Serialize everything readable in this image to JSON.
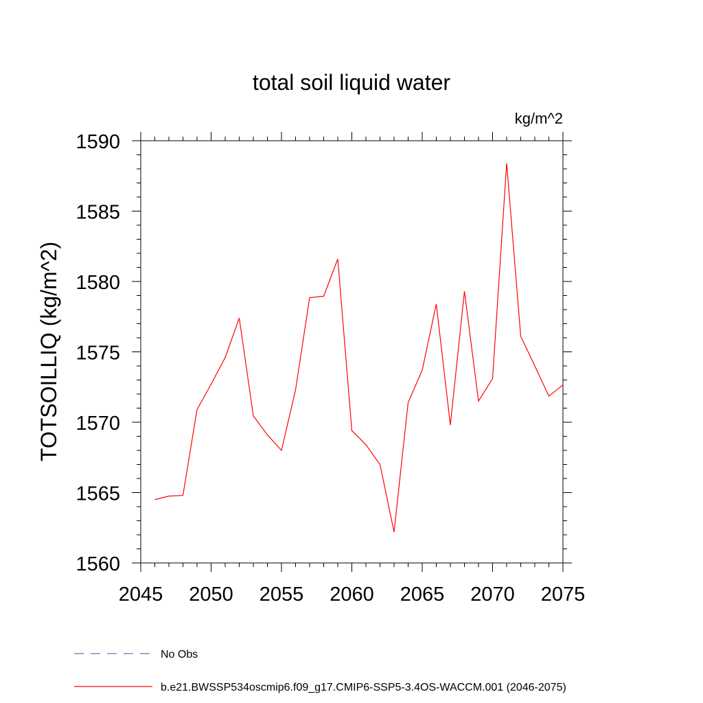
{
  "chart_data": {
    "type": "line",
    "title": "total soil liquid water",
    "units_label": "kg/m^2",
    "xlabel": "",
    "ylabel": "TOTSOILLIQ  (kg/m^2)",
    "xlim": [
      2045,
      2075
    ],
    "ylim": [
      1560,
      1590
    ],
    "xticks": [
      2045,
      2050,
      2055,
      2060,
      2065,
      2070,
      2075
    ],
    "yticks": [
      1560,
      1565,
      1570,
      1575,
      1580,
      1585,
      1590
    ],
    "x_minor_step": 1,
    "y_minor_step": 1,
    "grid": false,
    "legend_position": "bottom-left",
    "series": [
      {
        "name": "No Obs",
        "color": "#7b6fb0",
        "style": "dashed",
        "x": [],
        "values": []
      },
      {
        "name": "b.e21.BWSSP534oscmip6.f09_g17.CMIP6-SSP5-3.4OS-WACCM.001 (2046-2075)",
        "color": "#ff0000",
        "style": "solid",
        "x": [
          2046,
          2047,
          2048,
          2049,
          2050,
          2051,
          2052,
          2053,
          2054,
          2055,
          2056,
          2057,
          2058,
          2059,
          2060,
          2061,
          2062,
          2063,
          2064,
          2065,
          2066,
          2067,
          2068,
          2069,
          2070,
          2071,
          2072,
          2073,
          2074,
          2075
        ],
        "values": [
          1564.5,
          1564.75,
          1564.8,
          1570.9,
          1572.7,
          1574.6,
          1577.4,
          1570.45,
          1569.1,
          1568.0,
          1572.3,
          1578.85,
          1578.95,
          1581.6,
          1569.4,
          1568.4,
          1567.0,
          1562.2,
          1571.4,
          1573.7,
          1578.4,
          1569.8,
          1579.3,
          1571.5,
          1573.1,
          1588.4,
          1576.1,
          1574.0,
          1571.85,
          1572.65
        ]
      }
    ]
  }
}
